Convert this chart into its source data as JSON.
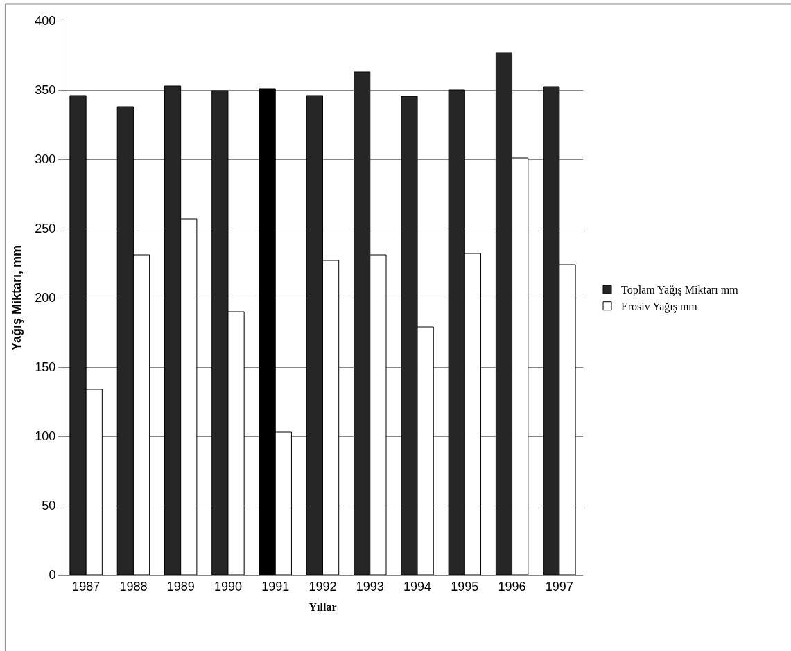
{
  "chart_data": {
    "type": "bar",
    "xlabel": "Yıllar",
    "ylabel": "Yağış Miktarı, mm",
    "categories": [
      "1987",
      "1988",
      "1989",
      "1990",
      "1991",
      "1992",
      "1993",
      "1994",
      "1995",
      "1996",
      "1997"
    ],
    "series": [
      {
        "name": "Toplam Yağış Miktarı mm",
        "color": "#262626",
        "colors": [
          "#262626",
          "#262626",
          "#262626",
          "#262626",
          "#000000",
          "#262626",
          "#262626",
          "#262626",
          "#262626",
          "#262626",
          "#262626"
        ],
        "values": [
          346,
          338,
          353,
          349.5,
          351,
          346,
          363,
          345.5,
          350,
          377,
          352.5
        ]
      },
      {
        "name": "Erosiv Yağış mm",
        "color": "#ffffff",
        "values": [
          134,
          231,
          257,
          190,
          103,
          227,
          231,
          179,
          232,
          301,
          224
        ]
      }
    ],
    "ylim": [
      0,
      400
    ],
    "yticks": [
      0,
      50,
      100,
      150,
      200,
      250,
      300,
      350,
      400
    ],
    "grid": "y",
    "legend": "right"
  }
}
